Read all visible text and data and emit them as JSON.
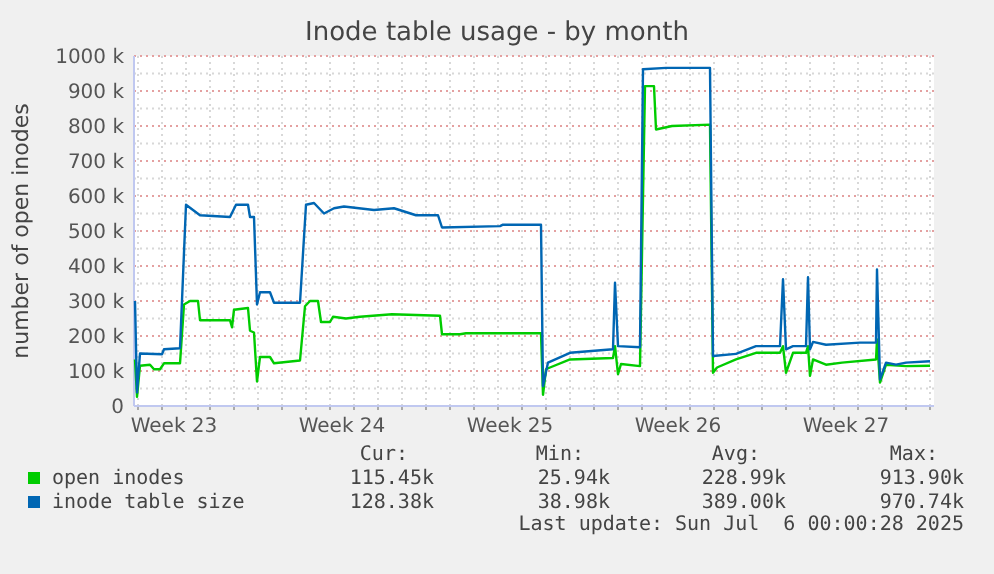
{
  "chart_data": {
    "type": "line",
    "title": "Inode table usage - by month",
    "ylabel": "number of open inodes",
    "xlim": [
      "2025-06-02T20:00",
      "2025-07-06T04:00"
    ],
    "xticks": [
      {
        "value": "2025-06-03",
        "label": null
      },
      {
        "value": "2025-06-04",
        "label": null
      },
      {
        "value": "2025-06-04T12:00",
        "label": "Week 23"
      },
      {
        "value": "2025-06-05",
        "label": null
      },
      {
        "value": "2025-06-06",
        "label": null
      },
      {
        "value": "2025-06-07",
        "label": null
      },
      {
        "value": "2025-06-08",
        "label": null
      },
      {
        "value": "2025-06-09",
        "label": null
      },
      {
        "value": "2025-06-10",
        "label": null
      },
      {
        "value": "2025-06-11",
        "label": null
      },
      {
        "value": "2025-06-11T12:00",
        "label": "Week 24"
      },
      {
        "value": "2025-06-12",
        "label": null
      },
      {
        "value": "2025-06-13",
        "label": null
      },
      {
        "value": "2025-06-14",
        "label": null
      },
      {
        "value": "2025-06-15",
        "label": null
      },
      {
        "value": "2025-06-16",
        "label": null
      },
      {
        "value": "2025-06-17",
        "label": null
      },
      {
        "value": "2025-06-18",
        "label": null
      },
      {
        "value": "2025-06-18T12:00",
        "label": "Week 25"
      },
      {
        "value": "2025-06-19",
        "label": null
      },
      {
        "value": "2025-06-20",
        "label": null
      },
      {
        "value": "2025-06-21",
        "label": null
      },
      {
        "value": "2025-06-22",
        "label": null
      },
      {
        "value": "2025-06-23",
        "label": null
      },
      {
        "value": "2025-06-24",
        "label": null
      },
      {
        "value": "2025-06-25",
        "label": null
      },
      {
        "value": "2025-06-25T12:00",
        "label": "Week 26"
      },
      {
        "value": "2025-06-26",
        "label": null
      },
      {
        "value": "2025-06-27",
        "label": null
      },
      {
        "value": "2025-06-28",
        "label": null
      },
      {
        "value": "2025-06-29",
        "label": null
      },
      {
        "value": "2025-06-30",
        "label": null
      },
      {
        "value": "2025-07-01",
        "label": null
      },
      {
        "value": "2025-07-02",
        "label": null
      },
      {
        "value": "2025-07-02T12:00",
        "label": "Week 27"
      },
      {
        "value": "2025-07-03",
        "label": null
      },
      {
        "value": "2025-07-04",
        "label": null
      },
      {
        "value": "2025-07-05",
        "label": null
      },
      {
        "value": "2025-07-06",
        "label": null
      }
    ],
    "ylim": [
      0,
      1000000
    ],
    "yticks": [
      0,
      {
        "value": 50000,
        "label": null
      },
      {
        "value": 100000,
        "label": "100 k"
      },
      {
        "value": 150000,
        "label": null
      },
      {
        "value": 200000,
        "label": "200 k"
      },
      {
        "value": 250000,
        "label": null
      },
      {
        "value": 300000,
        "label": "300 k"
      },
      {
        "value": 350000,
        "label": null
      },
      {
        "value": 400000,
        "label": "400 k"
      },
      {
        "value": 450000,
        "label": null
      },
      {
        "value": 500000,
        "label": "500 k"
      },
      {
        "value": 550000,
        "label": null
      },
      {
        "value": 600000,
        "label": "600 k"
      },
      {
        "value": 650000,
        "label": null
      },
      {
        "value": 700000,
        "label": "700 k"
      },
      {
        "value": 750000,
        "label": null
      },
      {
        "value": 800000,
        "label": "800 k"
      },
      {
        "value": 850000,
        "label": null
      },
      {
        "value": 900000,
        "label": "900 k"
      },
      {
        "value": 950000,
        "label": null
      },
      {
        "value": 1000000,
        "label": "1000 k"
      }
    ],
    "grid": true,
    "legend": "bottom",
    "series": [
      {
        "name": "open inodes",
        "color": "#00cc00",
        "x": [
          "2025-06-02T21:00",
          "2025-06-02T23:00",
          "2025-06-03T02:00",
          "2025-06-03T12:00",
          "2025-06-03T16:00",
          "2025-06-03T22:00",
          "2025-06-04T02:00",
          "2025-06-04T18:00",
          "2025-06-04T22:00",
          "2025-06-05T04:00",
          "2025-06-05T12:00",
          "2025-06-05T14:00",
          "2025-06-06T20:00",
          "2025-06-06T22:00",
          "2025-06-07T00:00",
          "2025-06-07T14:00",
          "2025-06-07T16:00",
          "2025-06-07T20:00",
          "2025-06-07T23:00",
          "2025-06-08T02:00",
          "2025-06-08T12:00",
          "2025-06-08T16:00",
          "2025-06-09T18:00",
          "2025-06-09T23:00",
          "2025-06-10T04:00",
          "2025-06-10T12:00",
          "2025-06-10T15:00",
          "2025-06-11T00:00",
          "2025-06-11T03:00",
          "2025-06-11T16:00",
          "2025-06-12T06:00",
          "2025-06-13T14:00",
          "2025-06-14T14:00",
          "2025-06-15T14:00",
          "2025-06-15T16:00",
          "2025-06-16T10:00",
          "2025-06-16T16:00",
          "2025-06-19T19:00",
          "2025-06-19T21:00",
          "2025-06-20T00:00",
          "2025-06-20T04:00",
          "2025-06-21T00:00",
          "2025-06-22T19:00",
          "2025-06-22T21:00",
          "2025-06-23T00:00",
          "2025-06-23T03:00",
          "2025-06-23T22:00",
          "2025-06-24T03:00",
          "2025-06-24T12:00",
          "2025-06-24T14:00",
          "2025-06-25T06:00",
          "2025-06-26T20:00",
          "2025-06-26T23:00",
          "2025-06-27T03:00",
          "2025-06-27T22:00",
          "2025-06-28T18:00",
          "2025-06-29T18:00",
          "2025-06-29T21:00",
          "2025-06-30T00:00",
          "2025-06-30T07:00",
          "2025-06-30T20:00",
          "2025-06-30T22:00",
          "2025-07-01T00:00",
          "2025-07-01T03:00",
          "2025-07-01T16:00",
          "2025-07-02T08:00",
          "2025-07-03T18:00",
          "2025-07-03T19:00",
          "2025-07-03T22:00",
          "2025-07-04T04:00",
          "2025-07-05T00:00",
          "2025-07-06T00:00"
        ],
        "values": [
          133000,
          26000,
          115000,
          118000,
          105000,
          105000,
          122000,
          122000,
          290000,
          300000,
          300000,
          245000,
          245000,
          225000,
          275000,
          280000,
          215000,
          210000,
          70000,
          140000,
          140000,
          122000,
          130000,
          285000,
          300000,
          300000,
          240000,
          240000,
          255000,
          250000,
          255000,
          262000,
          260000,
          258000,
          205000,
          205000,
          208000,
          208000,
          32000,
          105000,
          110000,
          133000,
          137000,
          171000,
          91000,
          120000,
          114000,
          914000,
          914000,
          790000,
          800000,
          804000,
          95000,
          110000,
          133000,
          152000,
          152000,
          171000,
          95000,
          152000,
          152000,
          171000,
          86000,
          133000,
          118000,
          124000,
          133000,
          190000,
          67000,
          118000,
          114000,
          115000
        ]
      },
      {
        "name": "inode table size",
        "color": "#0066b3",
        "x": [
          "2025-06-02T21:00",
          "2025-06-02T23:00",
          "2025-06-03T02:00",
          "2025-06-04T00:00",
          "2025-06-04T02:00",
          "2025-06-04T18:00",
          "2025-06-05T00:00",
          "2025-06-05T14:00",
          "2025-06-06T20:00",
          "2025-06-07T02:00",
          "2025-06-07T14:00",
          "2025-06-07T16:00",
          "2025-06-07T20:00",
          "2025-06-07T23:00",
          "2025-06-08T02:00",
          "2025-06-08T12:00",
          "2025-06-08T16:00",
          "2025-06-09T18:00",
          "2025-06-10T00:00",
          "2025-06-10T08:00",
          "2025-06-10T18:00",
          "2025-06-11T04:00",
          "2025-06-11T14:00",
          "2025-06-12T20:00",
          "2025-06-13T16:00",
          "2025-06-14T14:00",
          "2025-06-15T12:00",
          "2025-06-15T16:00",
          "2025-06-18T02:00",
          "2025-06-18T05:00",
          "2025-06-19T19:00",
          "2025-06-19T21:00",
          "2025-06-20T02:00",
          "2025-06-21T00:00",
          "2025-06-22T19:00",
          "2025-06-22T21:00",
          "2025-06-23T00:00",
          "2025-06-23T22:00",
          "2025-06-24T01:00",
          "2025-06-25T00:00",
          "2025-06-26T20:00",
          "2025-06-26T23:00",
          "2025-06-27T22:00",
          "2025-06-28T18:00",
          "2025-06-29T18:00",
          "2025-06-29T21:00",
          "2025-06-30T00:00",
          "2025-06-30T07:00",
          "2025-06-30T20:00",
          "2025-06-30T22:00",
          "2025-07-01T00:00",
          "2025-07-01T03:00",
          "2025-07-01T16:00",
          "2025-07-03T02:00",
          "2025-07-03T18:00",
          "2025-07-03T19:00",
          "2025-07-03T22:00",
          "2025-07-04T04:00",
          "2025-07-04T14:00",
          "2025-07-05T00:00",
          "2025-07-06T00:00"
        ],
        "values": [
          300000,
          39000,
          150000,
          148000,
          162000,
          165000,
          575000,
          545000,
          540000,
          575000,
          575000,
          540000,
          540000,
          290000,
          325000,
          325000,
          295000,
          295000,
          575000,
          580000,
          550000,
          565000,
          570000,
          560000,
          565000,
          545000,
          545000,
          510000,
          514000,
          518000,
          518000,
          57000,
          124000,
          152000,
          162000,
          352000,
          171000,
          168000,
          962000,
          966000,
          966000,
          143000,
          149000,
          171000,
          171000,
          362000,
          162000,
          171000,
          171000,
          368000,
          162000,
          183000,
          175000,
          181000,
          181000,
          390000,
          76000,
          124000,
          118000,
          124000,
          128000
        ]
      }
    ],
    "annotations": [
      "Cur:",
      "Min:",
      "Avg:",
      "Max:",
      "115.45k",
      "25.94k",
      "228.99k",
      "913.90k",
      "128.38k",
      "38.98k",
      "389.00k",
      "970.74k",
      "Last update: Sun Jul  6 00:00:28 2025"
    ]
  }
}
